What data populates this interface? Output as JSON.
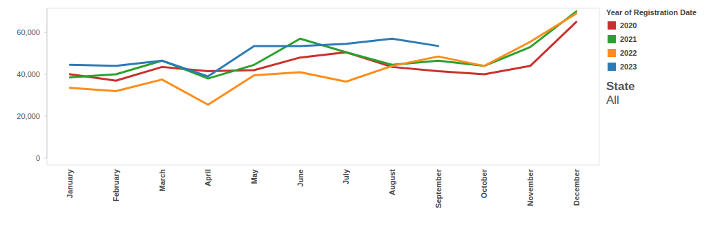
{
  "chart_data": {
    "type": "line",
    "categories": [
      "January",
      "February",
      "March",
      "April",
      "May",
      "June",
      "July",
      "August",
      "September",
      "October",
      "November",
      "December"
    ],
    "series": [
      {
        "name": "2020",
        "color": "#c9302c",
        "values": [
          40000,
          37000,
          43500,
          41500,
          42000,
          48000,
          50500,
          43500,
          41500,
          40000,
          44000,
          65000
        ]
      },
      {
        "name": "2021",
        "color": "#2ca02c",
        "values": [
          38500,
          40000,
          46500,
          38000,
          44500,
          57000,
          50500,
          44500,
          46500,
          44000,
          53000,
          70000
        ]
      },
      {
        "name": "2022",
        "color": "#ff8c1a",
        "values": [
          33500,
          32000,
          37500,
          25500,
          39500,
          41000,
          36500,
          44000,
          48500,
          44000,
          55500,
          69000
        ]
      },
      {
        "name": "2023",
        "color": "#2c7bb6",
        "values": [
          44500,
          44000,
          46500,
          39000,
          53500,
          53500,
          54500,
          57000,
          53500,
          null,
          null,
          null
        ]
      }
    ],
    "ylim": [
      0,
      71500
    ],
    "yticks": [
      0,
      {
        "value": 20000,
        "label": "20,000"
      },
      {
        "value": 40000,
        "label": "40,000"
      },
      {
        "value": 60000,
        "label": "60,000"
      }
    ],
    "grid": false,
    "legend": "right",
    "legend_title": "Year of Registration Date",
    "filter": {
      "label": "State",
      "value": "All"
    }
  }
}
